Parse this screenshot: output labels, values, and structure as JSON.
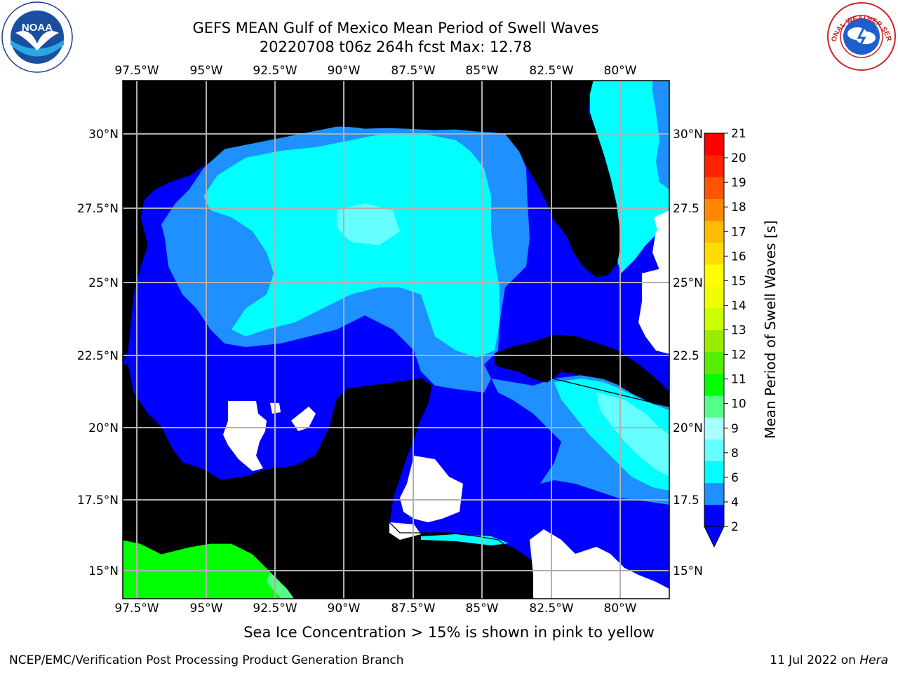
{
  "title": {
    "line1": "GEFS MEAN Gulf of Mexico Mean Period of Swell Waves",
    "line2": "20220708 t06z 264h fcst   Max: 12.78"
  },
  "logos": {
    "left": {
      "name": "noaa-logo",
      "text": "NOAA"
    },
    "right": {
      "name": "national-weather-service-logo",
      "text": "NATIONAL WEATHER SERVICE"
    }
  },
  "map": {
    "lon_ticks": [
      "97.5°W",
      "95°W",
      "92.5°W",
      "90°W",
      "87.5°W",
      "85°W",
      "82.5°W",
      "80°W"
    ],
    "lat_ticks_left": [
      "30°N",
      "27.5°N",
      "25°N",
      "22.5°N",
      "20°N",
      "17.5°N",
      "15°N"
    ],
    "lat_ticks_right": [
      "30°N",
      "27.5",
      "25°N",
      "22.5",
      "20°N",
      "17.5",
      "15°N"
    ],
    "colors": {
      "land": "#eeeedd",
      "band_2_4": "#0000ff",
      "band_4_6": "#1e90ff",
      "band_6_8": "#00ffff",
      "band_8_9": "#66ffff",
      "band_10_11": "#00ff00",
      "grid": "#b0b0b0"
    }
  },
  "colorbar": {
    "label": "Mean Period of Swell Waves [s]",
    "ticks": [
      "2",
      "4",
      "6",
      "8",
      "9",
      "10",
      "11",
      "12",
      "13",
      "14",
      "15",
      "16",
      "17",
      "18",
      "19",
      "20",
      "21"
    ],
    "colors": [
      "#0000ff",
      "#1e90ff",
      "#00ffff",
      "#66ffff",
      "#aaffff",
      "#55ff88",
      "#00ff00",
      "#55ee00",
      "#99ee00",
      "#ccff00",
      "#eeff00",
      "#ffff00",
      "#ffdd00",
      "#ffbb00",
      "#ff8800",
      "#ff5500",
      "#ff2200",
      "#ff0000"
    ],
    "under_color": "#0000ff"
  },
  "notes": {
    "sea_ice": "Sea Ice Concentration > 15% is shown in pink to yellow"
  },
  "footer": {
    "left": "NCEP/EMC/Verification Post Processing Product Generation Branch",
    "right_prefix": "11 Jul 2022 on ",
    "right_host": "Hera"
  }
}
